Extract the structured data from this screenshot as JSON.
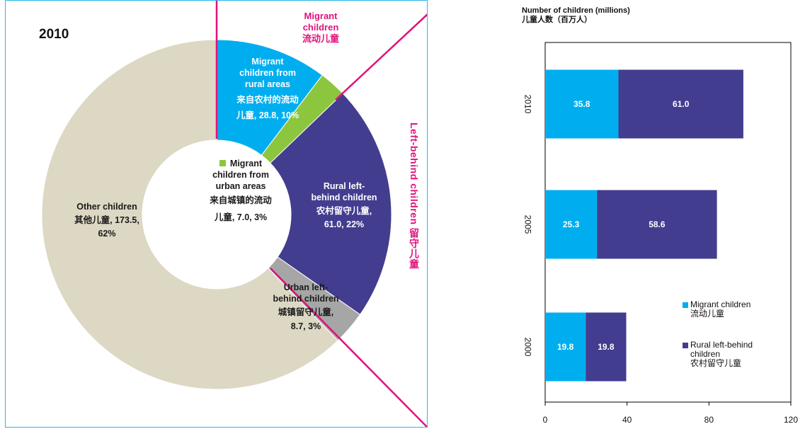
{
  "colors": {
    "migrant_rural": "#00aeef",
    "migrant_urban": "#8cc63f",
    "rural_left_behind": "#433d8f",
    "urban_left_behind": "#a6a6a6",
    "other": "#ddd8c4",
    "accent_line": "#e0127c",
    "panel_border": "#29b6e8"
  },
  "donut": {
    "year": "2010",
    "migrant_header": [
      "Migrant",
      "children",
      "流动儿童"
    ],
    "leftbehind_header": "Left-behind children 留守儿童",
    "labels": {
      "migrant_rural": [
        "Migrant",
        "children from",
        "rural areas",
        "来自农村的流动",
        "儿童, 28.8, 10%"
      ],
      "migrant_urban": [
        "Migrant",
        "children from",
        "urban areas",
        "来自城镇的流动",
        "儿童, 7.0, 3%"
      ],
      "rural_left_behind": [
        "Rural left-",
        "behind children",
        "农村留守儿童,",
        "61.0, 22%"
      ],
      "urban_left_behind": [
        "Urban left-",
        "behind children",
        "城镇留守儿童,",
        "8.7, 3%"
      ],
      "other": [
        "Other children",
        "其他儿童, 173.5,",
        "62%"
      ]
    }
  },
  "bar": {
    "title_en": "Number of children (millions)",
    "title_zh": "儿童人数（百万人）",
    "legend": [
      {
        "lines": [
          "Migrant children",
          "流动儿童"
        ]
      },
      {
        "lines": [
          "Rural left-behind",
          "children",
          "农村留守儿童"
        ]
      }
    ]
  },
  "chart_data": [
    {
      "type": "pie",
      "title": "2010",
      "slices": [
        {
          "name": "Migrant children from rural areas 来自农村的流动儿童",
          "value": 28.8,
          "percent": 10
        },
        {
          "name": "Migrant children from urban areas 来自城镇的流动儿童",
          "value": 7.0,
          "percent": 3
        },
        {
          "name": "Rural left-behind children 农村留守儿童",
          "value": 61.0,
          "percent": 22
        },
        {
          "name": "Urban left-behind children 城镇留守儿童",
          "value": 8.7,
          "percent": 3
        },
        {
          "name": "Other children 其他儿童",
          "value": 173.5,
          "percent": 62
        }
      ]
    },
    {
      "type": "bar",
      "orientation": "horizontal",
      "stacked": true,
      "title": "Number of children (millions) 儿童人数（百万人）",
      "categories": [
        "2010",
        "2005",
        "2000"
      ],
      "series": [
        {
          "name": "Migrant children 流动儿童",
          "values": [
            35.8,
            25.3,
            19.8
          ]
        },
        {
          "name": "Rural left-behind children 农村留守儿童",
          "values": [
            61.0,
            58.6,
            19.8
          ]
        }
      ],
      "xlim": [
        0,
        120
      ],
      "xticks": [
        0,
        40,
        80,
        120
      ],
      "legend_position": "right"
    }
  ]
}
